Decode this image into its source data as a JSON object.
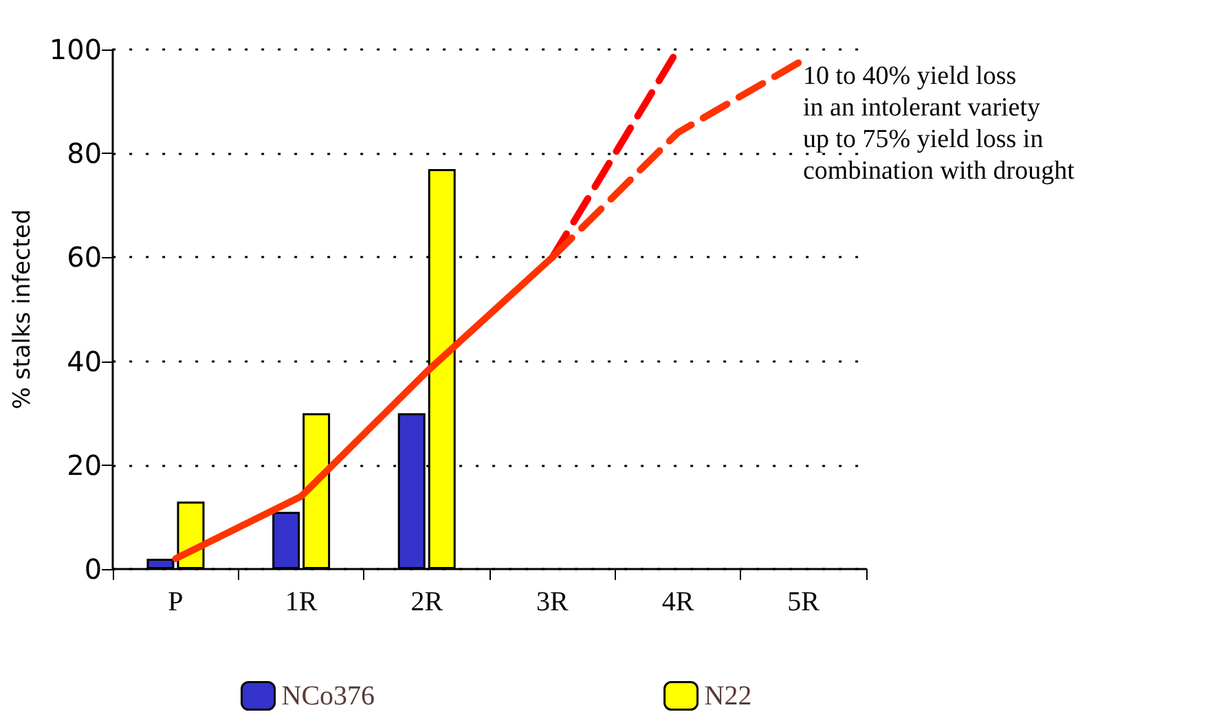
{
  "chart_data": {
    "type": "bar",
    "ylabel": "% stalks infected",
    "categories": [
      "P",
      "1R",
      "2R",
      "3R",
      "4R",
      "5R"
    ],
    "series": [
      {
        "name": "NCo376",
        "color": "#3333cc",
        "values": [
          2,
          11,
          30,
          null,
          null,
          null
        ]
      },
      {
        "name": "N22",
        "color": "#ffff00",
        "values": [
          13,
          30,
          77,
          null,
          null,
          null
        ]
      },
      {
        "type": "line",
        "color": "#ff3300",
        "line_style": "solid",
        "x": [
          "P",
          "1R",
          "2R",
          "3R"
        ],
        "values": [
          2,
          14,
          38,
          60
        ]
      },
      {
        "type": "line",
        "color": "#ff0000",
        "line_style": "dashed",
        "x": [
          "3R",
          "4R"
        ],
        "values": [
          60,
          100
        ]
      },
      {
        "type": "line",
        "color": "#ff3300",
        "line_style": "dashed",
        "x": [
          "3R",
          "4R",
          "5R"
        ],
        "values": [
          60,
          84,
          98
        ]
      }
    ],
    "ylim": [
      0,
      100
    ],
    "yticks": [
      0,
      20,
      40,
      60,
      80,
      100
    ],
    "grid": "y",
    "legend": "bottom",
    "marker": "none",
    "annotations": [
      "10 to 40% yield loss\nin an intolerant variety\nup to 75% yield loss in\ncombination with drought"
    ]
  }
}
